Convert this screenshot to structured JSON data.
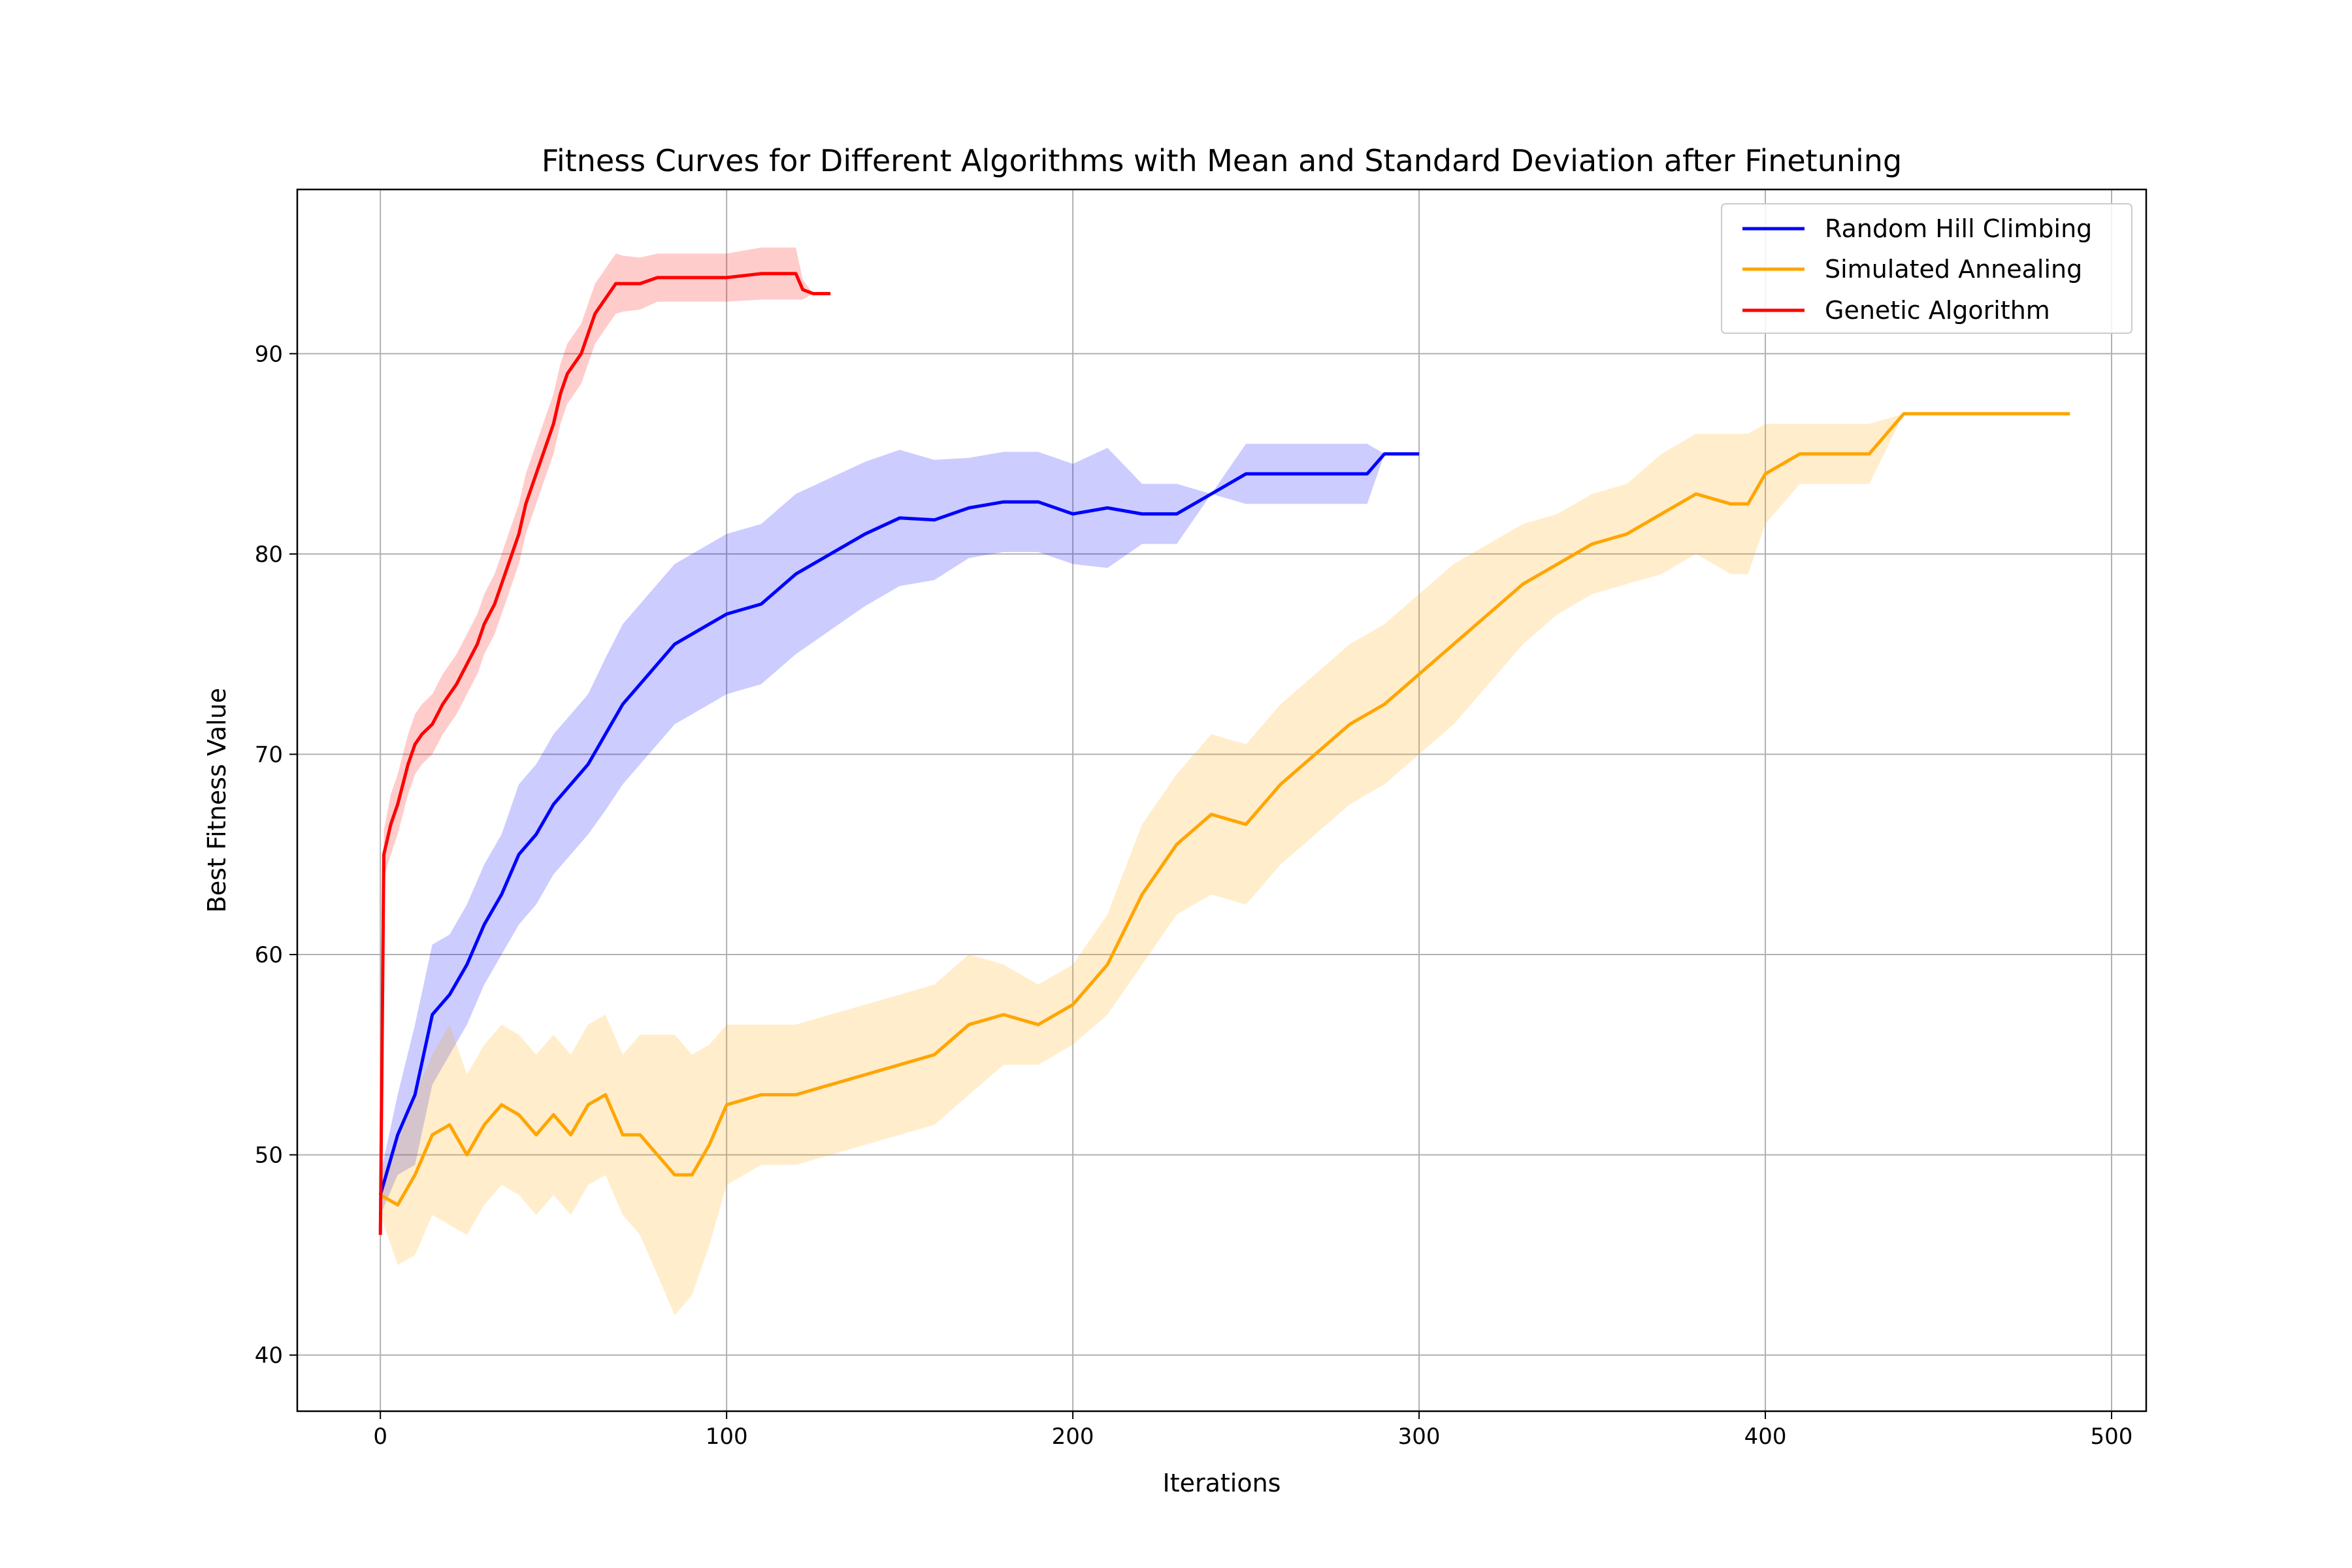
{
  "chart_data": {
    "type": "line",
    "title": "Fitness Curves for Different Algorithms with Mean and Standard Deviation after Finetuning",
    "xlabel": "Iterations",
    "ylabel": "Best Fitness Value",
    "xlim": [
      -24,
      510
    ],
    "ylim": [
      37.2,
      98.2
    ],
    "xticks": [
      0,
      100,
      200,
      300,
      400,
      500
    ],
    "yticks": [
      40,
      50,
      60,
      70,
      80,
      90
    ],
    "grid": true,
    "legend_position": "top-right",
    "legend": [
      "Random Hill Climbing",
      "Simulated Annealing",
      "Genetic Algorithm"
    ],
    "series": [
      {
        "name": "Random Hill Climbing",
        "color": "#0000ff",
        "x": [
          0,
          5,
          10,
          15,
          20,
          25,
          30,
          35,
          40,
          45,
          50,
          55,
          60,
          65,
          70,
          75,
          80,
          85,
          90,
          95,
          100,
          110,
          120,
          130,
          140,
          150,
          160,
          170,
          180,
          190,
          200,
          210,
          220,
          230,
          240,
          250,
          260,
          270,
          280,
          285,
          290,
          300
        ],
        "mean": [
          48,
          51,
          53,
          57,
          58,
          59.5,
          61.5,
          63,
          65,
          66,
          67.5,
          68.5,
          69.5,
          71,
          72.5,
          73.5,
          74.5,
          75.5,
          76,
          76.5,
          77,
          77.5,
          79,
          80,
          81,
          81.8,
          81.7,
          82.3,
          82.6,
          82.6,
          82,
          82.3,
          82,
          82,
          83,
          84,
          84,
          84,
          84,
          84,
          85,
          85
        ],
        "std": [
          1,
          2,
          3.5,
          3.5,
          3,
          3,
          3,
          3,
          3.5,
          3.5,
          3.5,
          3.5,
          3.5,
          3.8,
          4,
          4,
          4,
          4,
          4,
          4,
          4,
          4,
          4,
          3.8,
          3.6,
          3.4,
          3,
          2.5,
          2.5,
          2.5,
          2.5,
          3,
          1.5,
          1.5,
          0,
          1.5,
          1.5,
          1.5,
          1.5,
          1.5,
          0,
          0
        ]
      },
      {
        "name": "Simulated Annealing",
        "color": "#ffa500",
        "x": [
          0,
          5,
          10,
          15,
          20,
          25,
          30,
          35,
          40,
          45,
          50,
          55,
          60,
          65,
          70,
          75,
          80,
          85,
          90,
          95,
          100,
          110,
          120,
          130,
          140,
          150,
          160,
          170,
          180,
          190,
          200,
          210,
          220,
          230,
          240,
          250,
          260,
          270,
          280,
          290,
          300,
          310,
          320,
          330,
          340,
          350,
          360,
          370,
          380,
          390,
          395,
          400,
          410,
          420,
          430,
          440,
          450,
          460,
          470,
          480,
          488
        ],
        "mean": [
          48,
          47.5,
          49,
          51,
          51.5,
          50,
          51.5,
          52.5,
          52,
          51,
          52,
          51,
          52.5,
          53,
          51,
          51,
          50,
          49,
          49,
          50.5,
          52.5,
          53,
          53,
          53.5,
          54,
          54.5,
          55,
          56.5,
          57,
          56.5,
          57.5,
          59.5,
          63,
          65.5,
          67,
          66.5,
          68.5,
          70,
          71.5,
          72.5,
          74,
          75.5,
          77,
          78.5,
          79.5,
          80.5,
          81,
          82,
          83,
          82.5,
          82.5,
          84,
          85,
          85,
          85,
          87,
          87,
          87,
          87,
          87,
          87
        ],
        "std": [
          1,
          3,
          4,
          4,
          5,
          4,
          4,
          4,
          4,
          4,
          4,
          4,
          4,
          4,
          4,
          5,
          6,
          7,
          6,
          5,
          4,
          3.5,
          3.5,
          3.5,
          3.5,
          3.5,
          3.5,
          3.5,
          2.5,
          2,
          2,
          2.5,
          3.5,
          3.5,
          4,
          4,
          4,
          4,
          4,
          4,
          4,
          4,
          3.5,
          3,
          2.5,
          2.5,
          2.5,
          3,
          3,
          3.5,
          3.5,
          2.5,
          1.5,
          1.5,
          1.5,
          0,
          0,
          0,
          0,
          0,
          0
        ]
      },
      {
        "name": "Genetic Algorithm",
        "color": "#ff0000",
        "x": [
          0,
          1,
          3,
          5,
          8,
          10,
          12,
          15,
          18,
          20,
          22,
          25,
          28,
          30,
          33,
          36,
          38,
          40,
          42,
          44,
          46,
          48,
          50,
          52,
          54,
          56,
          58,
          60,
          62,
          64,
          66,
          68,
          70,
          75,
          80,
          90,
          100,
          110,
          115,
          120,
          122,
          125,
          130
        ],
        "mean": [
          46,
          65,
          66.5,
          67.5,
          69.5,
          70.5,
          71,
          71.5,
          72.5,
          73,
          73.5,
          74.5,
          75.5,
          76.5,
          77.5,
          79,
          80,
          81,
          82.5,
          83.5,
          84.5,
          85.5,
          86.5,
          88,
          89,
          89.5,
          90,
          91,
          92,
          92.5,
          93,
          93.5,
          93.5,
          93.5,
          93.8,
          93.8,
          93.8,
          94,
          94,
          94,
          93.2,
          93,
          93
        ],
        "std": [
          0,
          1.2,
          1.5,
          1.5,
          1.5,
          1.5,
          1.5,
          1.5,
          1.5,
          1.5,
          1.5,
          1.5,
          1.5,
          1.5,
          1.5,
          1.5,
          1.5,
          1.5,
          1.5,
          1.5,
          1.5,
          1.5,
          1.5,
          1.5,
          1.5,
          1.5,
          1.5,
          1.5,
          1.5,
          1.5,
          1.5,
          1.5,
          1.4,
          1.3,
          1.2,
          1.2,
          1.2,
          1.3,
          1.3,
          1.3,
          0.5,
          0,
          0
        ]
      }
    ]
  }
}
